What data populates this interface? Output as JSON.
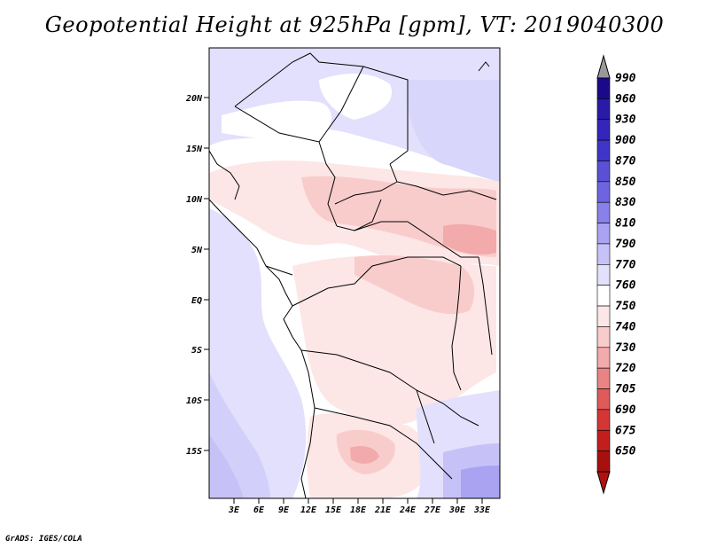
{
  "title": "Geopotential Height at 925hPa [gpm], VT: 2019040300",
  "footer": "GrADS: IGES/COLA",
  "map": {
    "lat_ticks": [
      "20N",
      "15N",
      "10N",
      "5N",
      "EQ",
      "5S",
      "10S",
      "15S"
    ],
    "lon_ticks": [
      "3E",
      "6E",
      "9E",
      "12E",
      "15E",
      "18E",
      "21E",
      "24E",
      "27E",
      "30E",
      "33E"
    ]
  },
  "colorbar": {
    "levels": [
      "990",
      "960",
      "930",
      "900",
      "870",
      "850",
      "830",
      "810",
      "790",
      "770",
      "760",
      "750",
      "740",
      "730",
      "720",
      "705",
      "690",
      "675",
      "650"
    ],
    "colors": [
      "#1a0a8a",
      "#2a1aa8",
      "#3525b8",
      "#3f35c8",
      "#5a50d6",
      "#6e64e0",
      "#8a80ea",
      "#a9a3f2",
      "#c6c2f8",
      "#e2e0fc",
      "#ffffff",
      "#fde6e6",
      "#f9cccc",
      "#f2aaaa",
      "#ea8484",
      "#e05a5a",
      "#d43636",
      "#c21e1e",
      "#a80f0f"
    ],
    "top_arrow_color": "#999999",
    "bottom_arrow_color": "#b01010"
  }
}
